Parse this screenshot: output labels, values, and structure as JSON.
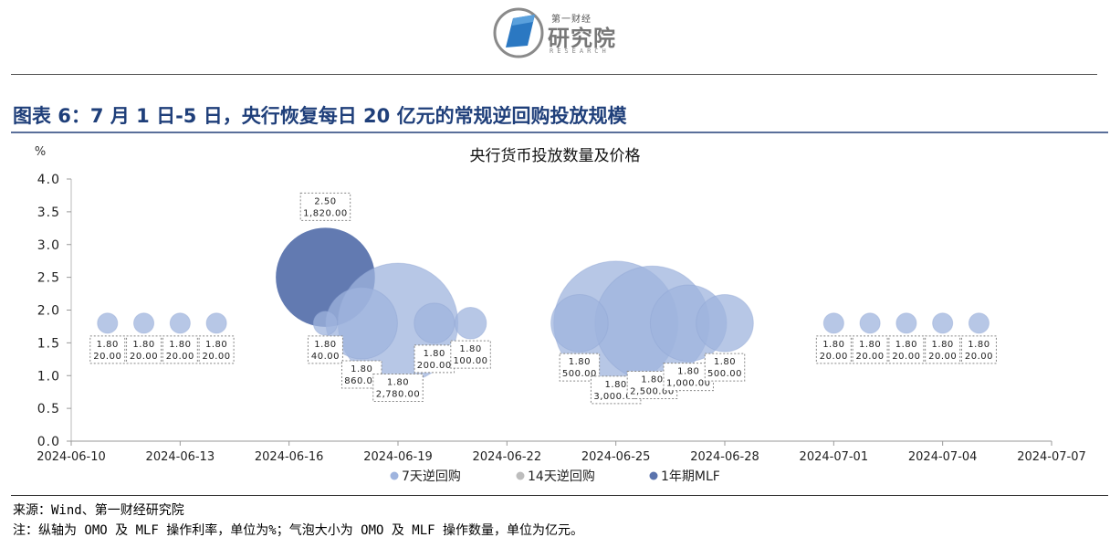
{
  "header": {
    "logo_top": "第一财经",
    "logo_main": "研究院",
    "logo_sub": "RESEARCH"
  },
  "figure_title": "图表 6：7 月 1 日-5 日，央行恢复每日 20 亿元的常规逆回购投放规模",
  "chart_data": {
    "type": "bubble",
    "title": "央行货币投放数量及价格",
    "ylabel": "%",
    "ylim": [
      0,
      4.0
    ],
    "yticks": [
      "0.0",
      "0.5",
      "1.0",
      "1.5",
      "2.0",
      "2.5",
      "3.0",
      "3.5",
      "4.0"
    ],
    "xlim": [
      "2024-06-10",
      "2024-07-07"
    ],
    "xticks": [
      "2024-06-10",
      "2024-06-13",
      "2024-06-16",
      "2024-06-19",
      "2024-06-22",
      "2024-06-25",
      "2024-06-28",
      "2024-07-01",
      "2024-07-04",
      "2024-07-07"
    ],
    "legend_position": "bottom",
    "series": [
      {
        "name": "7天逆回购",
        "color": "#9fb4de",
        "points": [
          {
            "date": "2024-06-11",
            "rate": 1.8,
            "amount": 20.0,
            "label": [
              "1.80",
              "20.00"
            ]
          },
          {
            "date": "2024-06-12",
            "rate": 1.8,
            "amount": 20.0,
            "label": [
              "1.80",
              "20.00"
            ]
          },
          {
            "date": "2024-06-13",
            "rate": 1.8,
            "amount": 20.0,
            "label": [
              "1.80",
              "20.00"
            ]
          },
          {
            "date": "2024-06-14",
            "rate": 1.8,
            "amount": 20.0,
            "label": [
              "1.80",
              "20.00"
            ]
          },
          {
            "date": "2024-06-17",
            "rate": 1.8,
            "amount": 40.0,
            "label": [
              "1.80",
              "40.00"
            ]
          },
          {
            "date": "2024-06-18",
            "rate": 1.8,
            "amount": 860.0,
            "label": [
              "1.80",
              "860.00"
            ]
          },
          {
            "date": "2024-06-19",
            "rate": 1.8,
            "amount": 2780.0,
            "label": [
              "1.80",
              "2,780.00"
            ]
          },
          {
            "date": "2024-06-20",
            "rate": 1.8,
            "amount": 200.0,
            "label": [
              "1.80",
              "200.00"
            ]
          },
          {
            "date": "2024-06-21",
            "rate": 1.8,
            "amount": 100.0,
            "label": [
              "1.80",
              "100.00"
            ]
          },
          {
            "date": "2024-06-24",
            "rate": 1.8,
            "amount": 500.0,
            "label": [
              "1.80",
              "500.00"
            ]
          },
          {
            "date": "2024-06-25",
            "rate": 1.8,
            "amount": 3000.0,
            "label": [
              "1.80",
              "3,000.00"
            ]
          },
          {
            "date": "2024-06-26",
            "rate": 1.8,
            "amount": 2500.0,
            "label": [
              "1.80",
              "2,500.00"
            ]
          },
          {
            "date": "2024-06-27",
            "rate": 1.8,
            "amount": 1000.0,
            "label": [
              "1.80",
              "1,000.00"
            ]
          },
          {
            "date": "2024-06-28",
            "rate": 1.8,
            "amount": 500.0,
            "label": [
              "1.80",
              "500.00"
            ]
          },
          {
            "date": "2024-07-01",
            "rate": 1.8,
            "amount": 20.0,
            "label": [
              "1.80",
              "20.00"
            ]
          },
          {
            "date": "2024-07-02",
            "rate": 1.8,
            "amount": 20.0,
            "label": [
              "1.80",
              "20.00"
            ]
          },
          {
            "date": "2024-07-03",
            "rate": 1.8,
            "amount": 20.0,
            "label": [
              "1.80",
              "20.00"
            ]
          },
          {
            "date": "2024-07-04",
            "rate": 1.8,
            "amount": 20.0,
            "label": [
              "1.80",
              "20.00"
            ]
          },
          {
            "date": "2024-07-05",
            "rate": 1.8,
            "amount": 20.0,
            "label": [
              "1.80",
              "20.00"
            ]
          }
        ]
      },
      {
        "name": "14天逆回购",
        "color": "#bdbdbd",
        "points": []
      },
      {
        "name": "1年期MLF",
        "color": "#5a73ad",
        "points": [
          {
            "date": "2024-06-17",
            "rate": 2.5,
            "amount": 1820.0,
            "label": [
              "2.50",
              "1,820.00"
            ]
          }
        ]
      }
    ]
  },
  "notes": {
    "source": "来源：Wind、第一财经研究院",
    "note": "注：纵轴为 OMO 及 MLF 操作利率，单位为%；气泡大小为 OMO 及 MLF 操作数量，单位为亿元。"
  }
}
